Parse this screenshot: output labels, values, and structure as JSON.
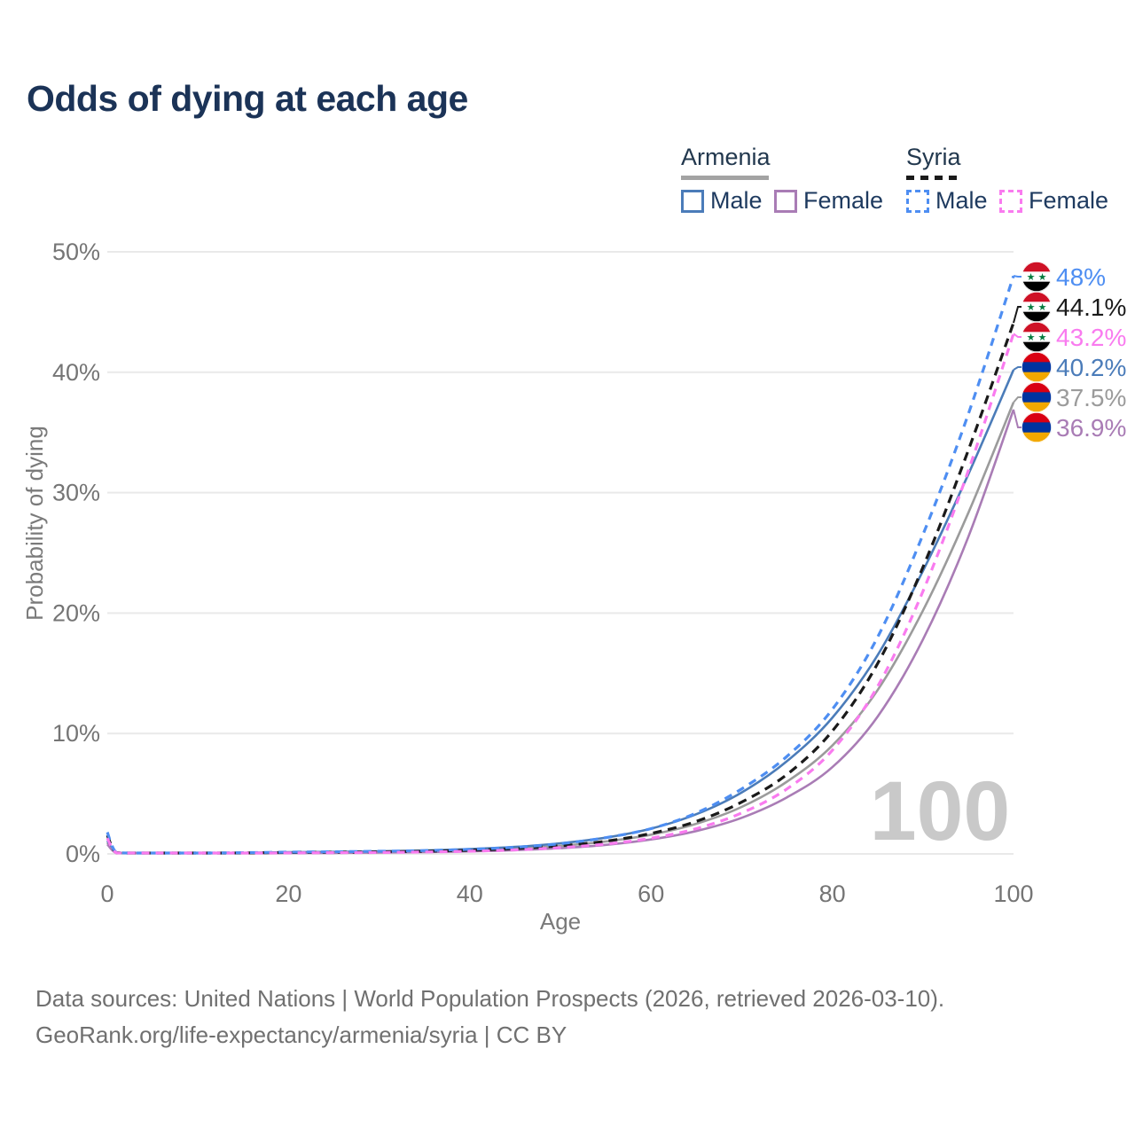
{
  "title": "Odds of dying at each age",
  "age_indicator": "100",
  "legend": {
    "armenia": {
      "label": "Armenia",
      "male": "Male",
      "female": "Female"
    },
    "syria": {
      "label": "Syria",
      "male": "Male",
      "female": "Female"
    }
  },
  "axes": {
    "x": {
      "label": "Age",
      "ticks": [
        {
          "value": 0,
          "label": "0"
        },
        {
          "value": 20,
          "label": "20"
        },
        {
          "value": 40,
          "label": "40"
        },
        {
          "value": 60,
          "label": "60"
        },
        {
          "value": 80,
          "label": "80"
        },
        {
          "value": 100,
          "label": "100"
        }
      ]
    },
    "y": {
      "label": "Probability of dying",
      "ticks": [
        {
          "value": 0,
          "label": "0%"
        },
        {
          "value": 10,
          "label": "10%"
        },
        {
          "value": 20,
          "label": "20%"
        },
        {
          "value": 30,
          "label": "30%"
        },
        {
          "value": 40,
          "label": "40%"
        },
        {
          "value": 50,
          "label": "50%"
        }
      ]
    }
  },
  "footer": {
    "line1": "Data sources: United Nations | World Population Prospects (2026, retrieved 2026-03-10).",
    "line2": "GeoRank.org/life-expectancy/armenia/syria | CC BY"
  },
  "flags": {
    "armenia": {
      "stripes": [
        "#D90012",
        "#0033A0",
        "#F2A800"
      ]
    },
    "syria": {
      "stripes": [
        "#CE1126",
        "#FFFFFF",
        "#000000"
      ],
      "star_color": "#007A3D",
      "stars": 2
    }
  },
  "colors": {
    "title": "#1b3357",
    "grid": "#e9e9e9",
    "tick_text": "#757575",
    "watermark": "#c9c9c9",
    "footer_text": "#707070"
  },
  "chart_data": {
    "type": "line",
    "title": "Odds of dying at each age",
    "xlabel": "Age",
    "ylabel": "Probability of dying",
    "xlim": [
      0,
      100
    ],
    "ylim": [
      0,
      50
    ],
    "grid": "horizontal-only",
    "legend_position": "top-right",
    "series": [
      {
        "key": "syria_male",
        "name": "Syria Male",
        "country": "syria",
        "sex": "male",
        "color": "#4e8ef2",
        "dash": true,
        "z": 5,
        "end_label": "48%",
        "end_value": 48.0,
        "points": [
          [
            0,
            1.8
          ],
          [
            1,
            0.12
          ],
          [
            3,
            0.07
          ],
          [
            5,
            0.06
          ],
          [
            10,
            0.07
          ],
          [
            15,
            0.1
          ],
          [
            20,
            0.15
          ],
          [
            25,
            0.18
          ],
          [
            30,
            0.22
          ],
          [
            35,
            0.28
          ],
          [
            40,
            0.38
          ],
          [
            45,
            0.55
          ],
          [
            50,
            0.85
          ],
          [
            55,
            1.35
          ],
          [
            60,
            2.1
          ],
          [
            65,
            3.4
          ],
          [
            70,
            5.4
          ],
          [
            75,
            8.1
          ],
          [
            80,
            12.0
          ],
          [
            85,
            18.0
          ],
          [
            90,
            26.5
          ],
          [
            95,
            36.5
          ],
          [
            100,
            48.0
          ]
        ]
      },
      {
        "key": "syria_both",
        "name": "Syria Both sexes",
        "country": "syria",
        "sex": "both",
        "color": "#1a1a1a",
        "dash": true,
        "z": 4,
        "end_label": "44.1%",
        "end_value": 44.1,
        "points": [
          [
            0,
            1.55
          ],
          [
            1,
            0.1
          ],
          [
            3,
            0.06
          ],
          [
            5,
            0.05
          ],
          [
            10,
            0.06
          ],
          [
            15,
            0.08
          ],
          [
            20,
            0.12
          ],
          [
            25,
            0.14
          ],
          [
            30,
            0.17
          ],
          [
            35,
            0.22
          ],
          [
            40,
            0.3
          ],
          [
            45,
            0.44
          ],
          [
            50,
            0.68
          ],
          [
            55,
            1.05
          ],
          [
            60,
            1.7
          ],
          [
            65,
            2.7
          ],
          [
            70,
            4.3
          ],
          [
            75,
            6.6
          ],
          [
            80,
            10.2
          ],
          [
            85,
            15.8
          ],
          [
            90,
            23.8
          ],
          [
            95,
            33.5
          ],
          [
            100,
            44.1
          ]
        ]
      },
      {
        "key": "syria_female",
        "name": "Syria Female",
        "country": "syria",
        "sex": "female",
        "color": "#f97bef",
        "dash": true,
        "z": 6,
        "end_label": "43.2%",
        "end_value": 43.2,
        "points": [
          [
            0,
            1.3
          ],
          [
            1,
            0.09
          ],
          [
            3,
            0.05
          ],
          [
            5,
            0.04
          ],
          [
            10,
            0.05
          ],
          [
            15,
            0.06
          ],
          [
            20,
            0.08
          ],
          [
            25,
            0.1
          ],
          [
            30,
            0.12
          ],
          [
            35,
            0.16
          ],
          [
            40,
            0.22
          ],
          [
            45,
            0.33
          ],
          [
            50,
            0.52
          ],
          [
            55,
            0.82
          ],
          [
            60,
            1.3
          ],
          [
            65,
            2.1
          ],
          [
            70,
            3.4
          ],
          [
            75,
            5.4
          ],
          [
            80,
            8.6
          ],
          [
            85,
            13.9
          ],
          [
            90,
            21.8
          ],
          [
            95,
            31.8
          ],
          [
            100,
            43.2
          ]
        ]
      },
      {
        "key": "armenia_male",
        "name": "Armenia Male",
        "country": "armenia",
        "sex": "male",
        "color": "#4b7cb9",
        "dash": false,
        "z": 2,
        "end_label": "40.2%",
        "end_value": 40.2,
        "points": [
          [
            0,
            1.1
          ],
          [
            1,
            0.09
          ],
          [
            3,
            0.05
          ],
          [
            5,
            0.05
          ],
          [
            10,
            0.06
          ],
          [
            15,
            0.09
          ],
          [
            20,
            0.14
          ],
          [
            25,
            0.17
          ],
          [
            30,
            0.21
          ],
          [
            35,
            0.28
          ],
          [
            40,
            0.4
          ],
          [
            45,
            0.58
          ],
          [
            50,
            0.88
          ],
          [
            55,
            1.35
          ],
          [
            60,
            2.1
          ],
          [
            65,
            3.3
          ],
          [
            70,
            5.1
          ],
          [
            75,
            7.7
          ],
          [
            80,
            11.3
          ],
          [
            85,
            16.5
          ],
          [
            90,
            23.5
          ],
          [
            95,
            31.5
          ],
          [
            100,
            40.2
          ]
        ]
      },
      {
        "key": "armenia_both",
        "name": "Armenia Both sexes",
        "country": "armenia",
        "sex": "both",
        "color": "#9b9b9b",
        "dash": false,
        "z": 1,
        "end_label": "37.5%",
        "end_value": 37.5,
        "points": [
          [
            0,
            0.95
          ],
          [
            1,
            0.08
          ],
          [
            3,
            0.05
          ],
          [
            5,
            0.04
          ],
          [
            10,
            0.05
          ],
          [
            15,
            0.07
          ],
          [
            20,
            0.1
          ],
          [
            25,
            0.13
          ],
          [
            30,
            0.16
          ],
          [
            35,
            0.21
          ],
          [
            40,
            0.3
          ],
          [
            45,
            0.44
          ],
          [
            50,
            0.67
          ],
          [
            55,
            1.03
          ],
          [
            60,
            1.6
          ],
          [
            65,
            2.5
          ],
          [
            70,
            3.9
          ],
          [
            75,
            6.0
          ],
          [
            80,
            9.0
          ],
          [
            85,
            13.6
          ],
          [
            90,
            20.2
          ],
          [
            95,
            28.3
          ],
          [
            100,
            37.5
          ]
        ]
      },
      {
        "key": "armenia_female",
        "name": "Armenia Female",
        "country": "armenia",
        "sex": "female",
        "color": "#a97cb5",
        "dash": false,
        "z": 3,
        "end_label": "36.9%",
        "end_value": 36.9,
        "points": [
          [
            0,
            0.8
          ],
          [
            1,
            0.07
          ],
          [
            3,
            0.04
          ],
          [
            5,
            0.03
          ],
          [
            10,
            0.04
          ],
          [
            15,
            0.05
          ],
          [
            20,
            0.06
          ],
          [
            25,
            0.08
          ],
          [
            30,
            0.11
          ],
          [
            35,
            0.15
          ],
          [
            40,
            0.21
          ],
          [
            45,
            0.31
          ],
          [
            50,
            0.48
          ],
          [
            55,
            0.75
          ],
          [
            60,
            1.2
          ],
          [
            65,
            1.9
          ],
          [
            70,
            3.0
          ],
          [
            75,
            4.7
          ],
          [
            80,
            7.2
          ],
          [
            85,
            11.4
          ],
          [
            90,
            17.8
          ],
          [
            95,
            26.3
          ],
          [
            100,
            36.9
          ]
        ]
      }
    ]
  }
}
